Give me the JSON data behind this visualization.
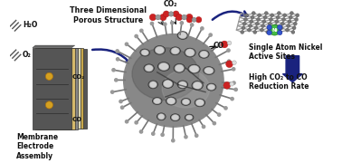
{
  "background_color": "#ffffff",
  "label_h2o": "H₂O",
  "label_o2": "O₂",
  "label_co2_layer": "CO₂",
  "label_co_layer": "CO",
  "label_three_d": "Three Dimensional\nPorous Structure",
  "label_membrane": "Membrane\nElectrode\nAssembly",
  "label_co2_top": "CO₂",
  "label_co_exit": "CO",
  "label_single_atom": "Single Atom Nickel\nActive Sites",
  "label_high_co2": "High CO₂ to CO\nReduction Rate",
  "arrow_color": "#1a237e",
  "atom_red": "#cc2222",
  "atom_gray": "#999999",
  "atom_white": "#dddddd",
  "atom_green": "#44bb44",
  "atom_blue_n": "#3355cc",
  "text_color": "#111111",
  "porous_base": "#888888",
  "porous_dark": "#555555",
  "porous_light": "#aaaaaa",
  "graphene_bond": "#999999",
  "graphene_node": "#777777",
  "layer_dark_gray": "#555555",
  "layer_gold1": "#c8a84a",
  "layer_gold2": "#d4b86a",
  "layer_cream": "#ddd8b0",
  "layer_mid_gray": "#888888"
}
